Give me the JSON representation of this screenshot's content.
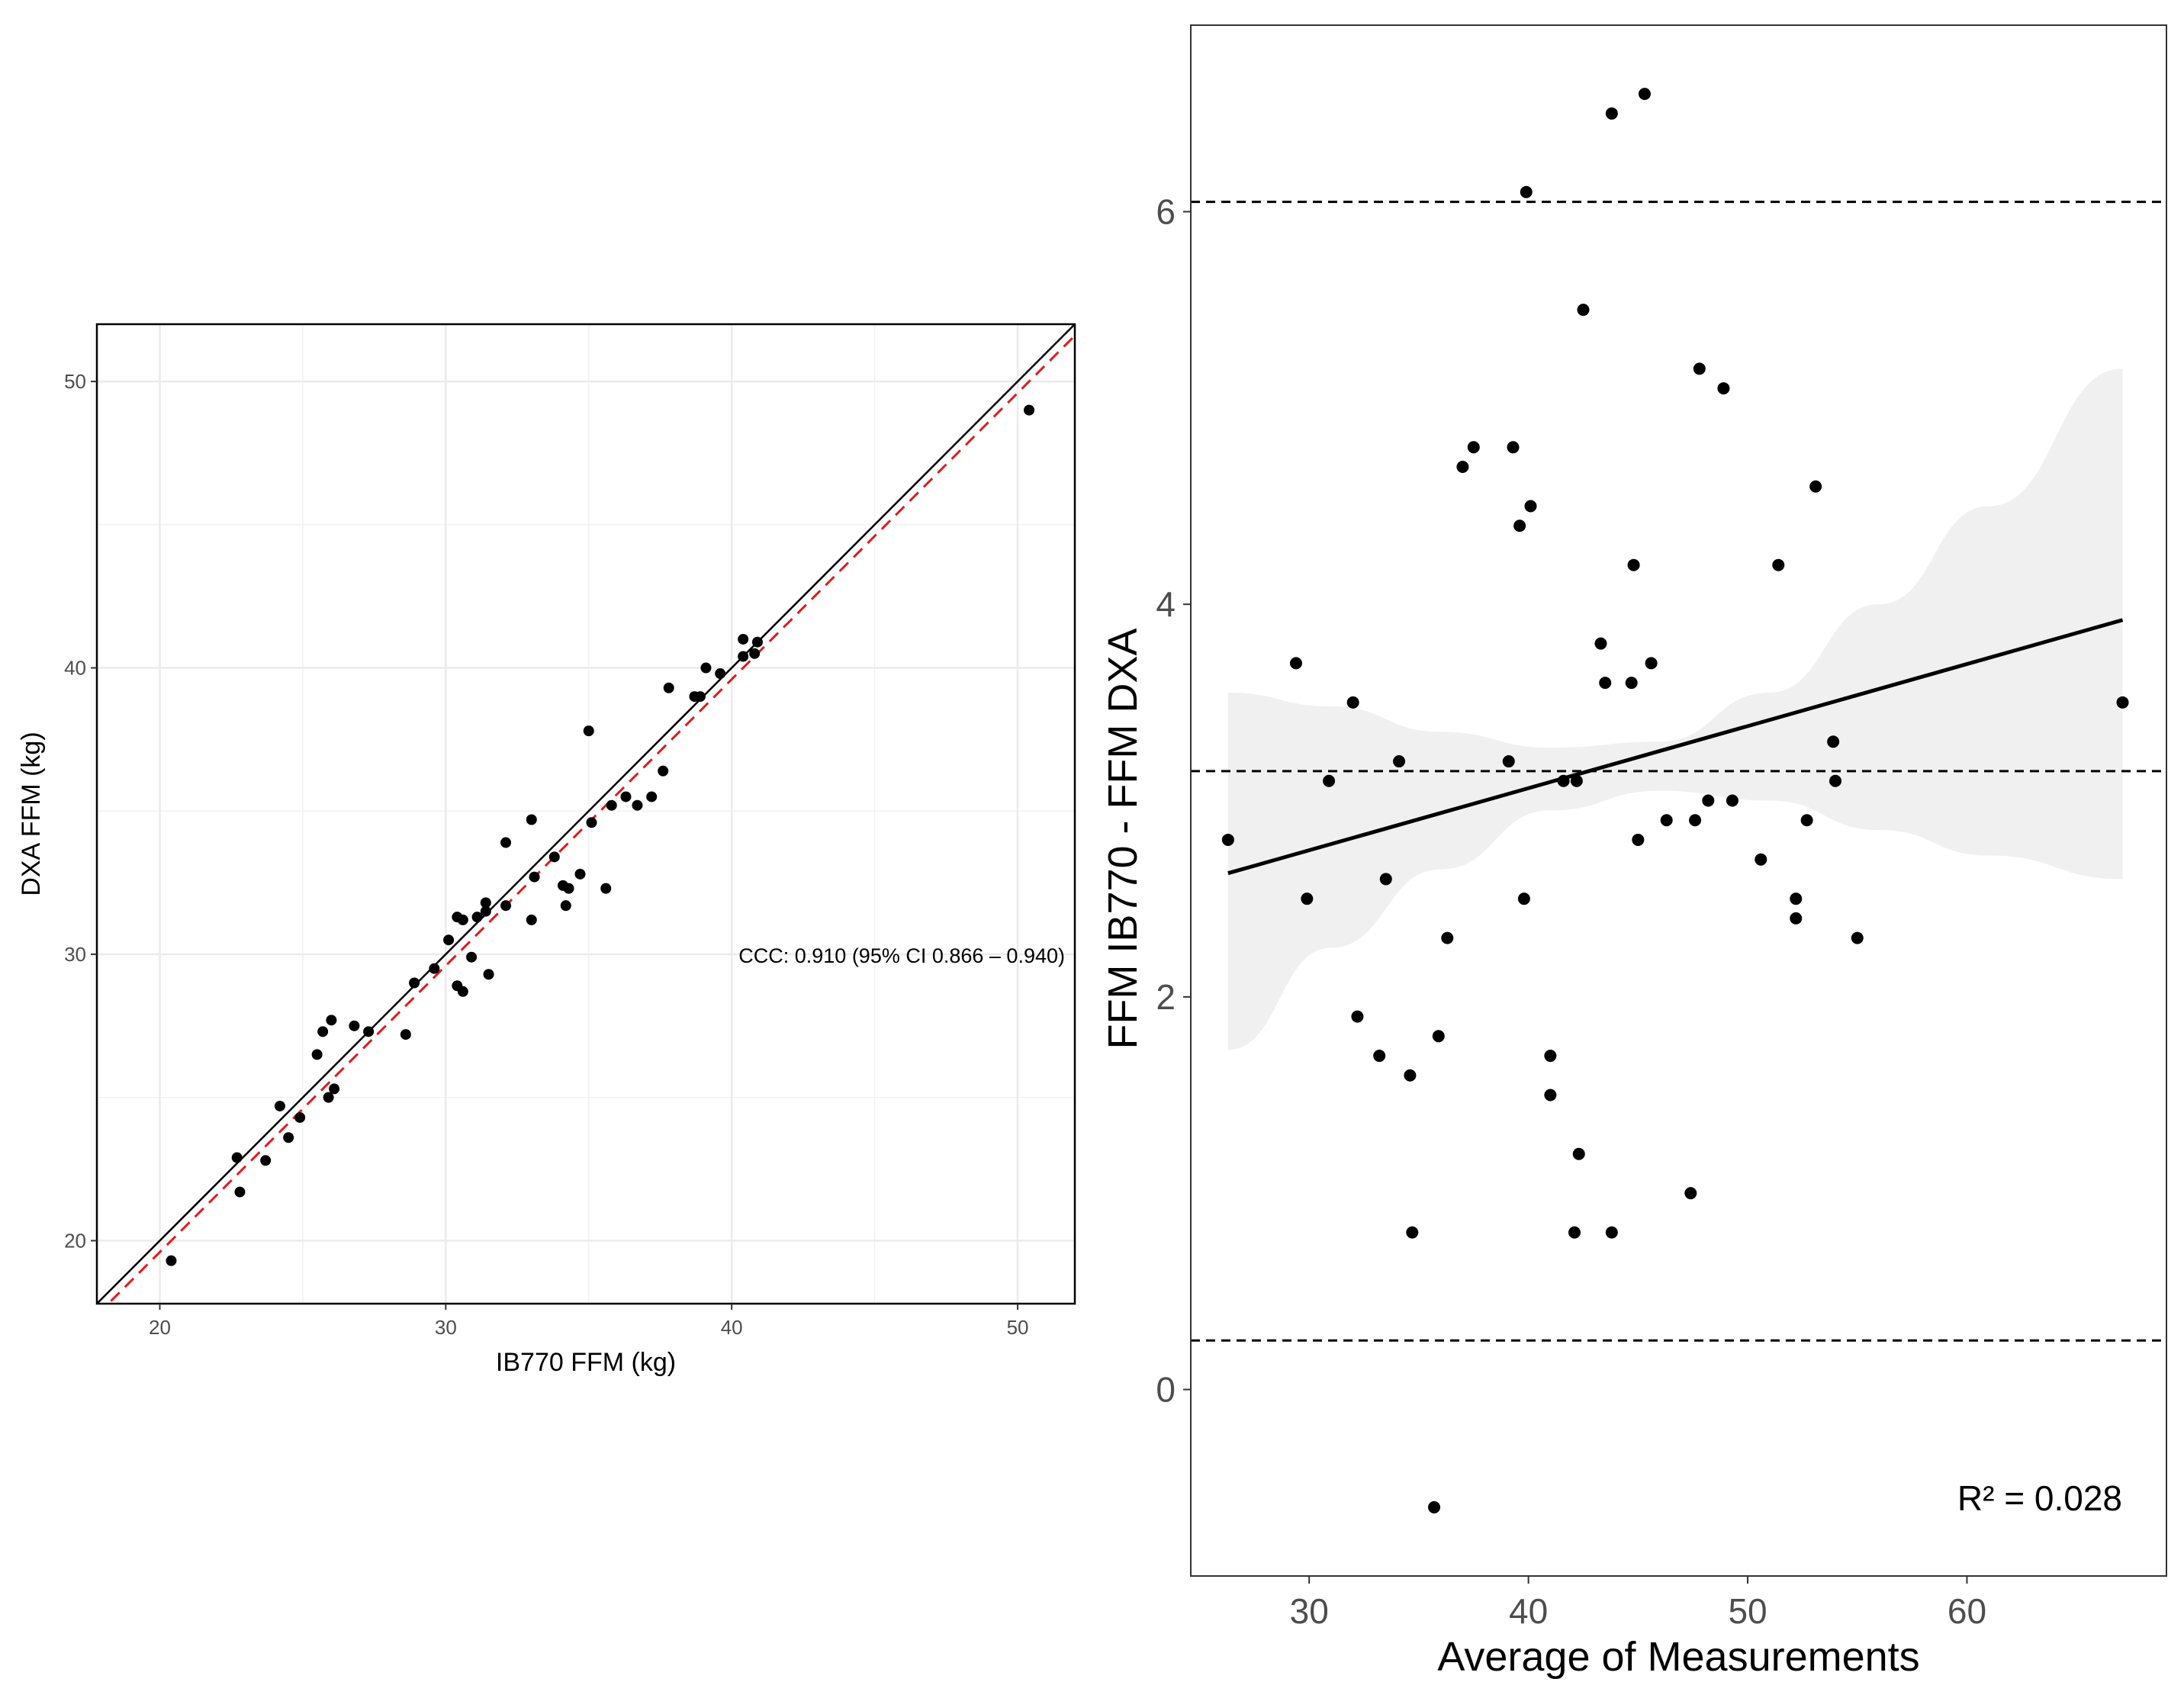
{
  "chart_data": [
    {
      "type": "scatter",
      "title": "",
      "xlabel": "IB770 FFM (kg)",
      "ylabel": "DXA FFM (kg)",
      "xlim": [
        17.8,
        52.0
      ],
      "ylim": [
        17.8,
        52.0
      ],
      "xticks": [
        20,
        30,
        40,
        50
      ],
      "yticks": [
        20,
        30,
        40,
        50
      ],
      "grid": true,
      "annotation": "CCC: 0.910 (95% CI 0.866 – 0.940)",
      "identity_line": {
        "name": "Line of identity",
        "color": "#000000",
        "style": "solid"
      },
      "fit_line": {
        "name": "Fitted line",
        "color": "#e41a1c",
        "style": "dashed",
        "intercept": -0.4,
        "slope": 1.0
      },
      "points": [
        [
          20.4,
          19.3
        ],
        [
          22.7,
          22.9
        ],
        [
          22.8,
          21.7
        ],
        [
          23.7,
          22.8
        ],
        [
          24.2,
          24.7
        ],
        [
          24.5,
          23.6
        ],
        [
          24.9,
          24.3
        ],
        [
          25.5,
          26.5
        ],
        [
          25.7,
          27.3
        ],
        [
          25.9,
          25.0
        ],
        [
          26.0,
          27.7
        ],
        [
          26.1,
          25.3
        ],
        [
          26.8,
          27.5
        ],
        [
          27.3,
          27.3
        ],
        [
          28.6,
          27.2
        ],
        [
          28.9,
          29.0
        ],
        [
          29.6,
          29.5
        ],
        [
          30.1,
          30.5
        ],
        [
          30.4,
          31.3
        ],
        [
          30.4,
          28.9
        ],
        [
          30.6,
          31.2
        ],
        [
          30.6,
          28.7
        ],
        [
          30.9,
          29.9
        ],
        [
          31.1,
          31.3
        ],
        [
          31.4,
          31.8
        ],
        [
          31.4,
          31.5
        ],
        [
          31.5,
          29.3
        ],
        [
          32.1,
          33.9
        ],
        [
          32.1,
          31.7
        ],
        [
          33.0,
          34.7
        ],
        [
          33.0,
          31.2
        ],
        [
          33.1,
          32.7
        ],
        [
          33.8,
          33.4
        ],
        [
          34.1,
          32.4
        ],
        [
          34.2,
          31.7
        ],
        [
          34.3,
          32.3
        ],
        [
          34.7,
          32.8
        ],
        [
          35.0,
          37.8
        ],
        [
          35.1,
          34.6
        ],
        [
          35.6,
          32.3
        ],
        [
          35.8,
          35.2
        ],
        [
          36.3,
          35.5
        ],
        [
          36.7,
          35.2
        ],
        [
          37.2,
          35.5
        ],
        [
          37.6,
          36.4
        ],
        [
          37.8,
          39.3
        ],
        [
          38.7,
          39.0
        ],
        [
          38.9,
          39.0
        ],
        [
          39.1,
          40.0
        ],
        [
          39.6,
          39.8
        ],
        [
          40.4,
          40.4
        ],
        [
          40.4,
          41.0
        ],
        [
          40.8,
          40.5
        ],
        [
          40.9,
          40.9
        ],
        [
          50.4,
          49.0
        ]
      ]
    },
    {
      "type": "scatter",
      "title": "",
      "xlabel": "Average of Measurements",
      "ylabel": "FFM IB770 - FFM DXA",
      "xlim": [
        24.6,
        69.1
      ],
      "ylim": [
        -0.95,
        6.95
      ],
      "xticks": [
        30,
        40,
        50,
        60
      ],
      "yticks": [
        0,
        2,
        4,
        6
      ],
      "grid": false,
      "annotation": "R² = 0.028",
      "reference_lines": [
        {
          "name": "Upper limit of agreement",
          "y": 6.05,
          "style": "dashed"
        },
        {
          "name": "Mean bias",
          "y": 3.15,
          "style": "dashed"
        },
        {
          "name": "Lower limit of agreement",
          "y": 0.25,
          "style": "dashed"
        }
      ],
      "regression": {
        "x_range": [
          26.3,
          67.1
        ],
        "line": [
          [
            26.3,
            2.63
          ],
          [
            67.1,
            3.92
          ]
        ],
        "ci_upper": [
          [
            26.3,
            3.55
          ],
          [
            31,
            3.48
          ],
          [
            36,
            3.35
          ],
          [
            41,
            3.27
          ],
          [
            46,
            3.3
          ],
          [
            51,
            3.55
          ],
          [
            56,
            4.0
          ],
          [
            61,
            4.5
          ],
          [
            67.1,
            5.2
          ]
        ],
        "ci_lower": [
          [
            26.3,
            1.73
          ],
          [
            31,
            2.25
          ],
          [
            36,
            2.65
          ],
          [
            41,
            2.95
          ],
          [
            46,
            3.05
          ],
          [
            51,
            3.0
          ],
          [
            56,
            2.85
          ],
          [
            61,
            2.72
          ],
          [
            67.1,
            2.6
          ]
        ]
      },
      "points": [
        [
          26.3,
          2.8
        ],
        [
          29.4,
          3.7
        ],
        [
          29.9,
          2.5
        ],
        [
          30.9,
          3.1
        ],
        [
          32.0,
          3.5
        ],
        [
          32.2,
          1.9
        ],
        [
          33.2,
          1.7
        ],
        [
          33.5,
          2.6
        ],
        [
          34.1,
          3.2
        ],
        [
          34.6,
          1.6
        ],
        [
          34.7,
          0.8
        ],
        [
          35.7,
          -0.6
        ],
        [
          35.9,
          1.8
        ],
        [
          36.3,
          2.3
        ],
        [
          37.0,
          4.7
        ],
        [
          37.5,
          4.8
        ],
        [
          39.1,
          3.2
        ],
        [
          39.3,
          4.8
        ],
        [
          39.6,
          4.4
        ],
        [
          39.8,
          2.5
        ],
        [
          39.9,
          6.1
        ],
        [
          40.1,
          4.5
        ],
        [
          41.0,
          1.7
        ],
        [
          41.0,
          1.5
        ],
        [
          41.6,
          3.1
        ],
        [
          42.1,
          0.8
        ],
        [
          42.2,
          3.1
        ],
        [
          42.3,
          1.2
        ],
        [
          42.5,
          5.5
        ],
        [
          43.3,
          3.8
        ],
        [
          43.5,
          3.6
        ],
        [
          43.8,
          6.5
        ],
        [
          43.8,
          0.8
        ],
        [
          44.7,
          3.6
        ],
        [
          44.8,
          4.2
        ],
        [
          45.0,
          2.8
        ],
        [
          45.3,
          6.6
        ],
        [
          45.6,
          3.7
        ],
        [
          46.3,
          2.9
        ],
        [
          47.4,
          1.0
        ],
        [
          47.6,
          2.9
        ],
        [
          47.8,
          5.2
        ],
        [
          48.2,
          3.0
        ],
        [
          48.9,
          5.1
        ],
        [
          49.3,
          3.0
        ],
        [
          50.6,
          2.7
        ],
        [
          51.4,
          4.2
        ],
        [
          52.2,
          2.5
        ],
        [
          52.2,
          2.4
        ],
        [
          52.7,
          2.9
        ],
        [
          53.1,
          4.6
        ],
        [
          53.9,
          3.3
        ],
        [
          54.0,
          3.1
        ],
        [
          55.0,
          2.3
        ],
        [
          67.1,
          3.5
        ]
      ]
    }
  ]
}
